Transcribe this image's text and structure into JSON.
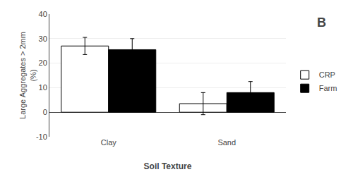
{
  "chart_data": {
    "type": "bar",
    "categories": [
      "Clay",
      "Sand"
    ],
    "series": [
      {
        "name": "CRP",
        "color": "#ffffff",
        "values": [
          27.0,
          3.5
        ],
        "errors": [
          3.5,
          4.5
        ]
      },
      {
        "name": "Farm",
        "color": "#000000",
        "values": [
          25.5,
          8.0
        ],
        "errors": [
          4.5,
          4.5
        ]
      }
    ],
    "xlabel": "Soil Texture",
    "ylabel": "Large Aggregates > 2mm\n(%)",
    "annotations": [
      "B"
    ],
    "ylim": [
      -10,
      40
    ],
    "yticks": [
      -10,
      0,
      10,
      20,
      30,
      40
    ],
    "grid": true,
    "legend": "right"
  }
}
